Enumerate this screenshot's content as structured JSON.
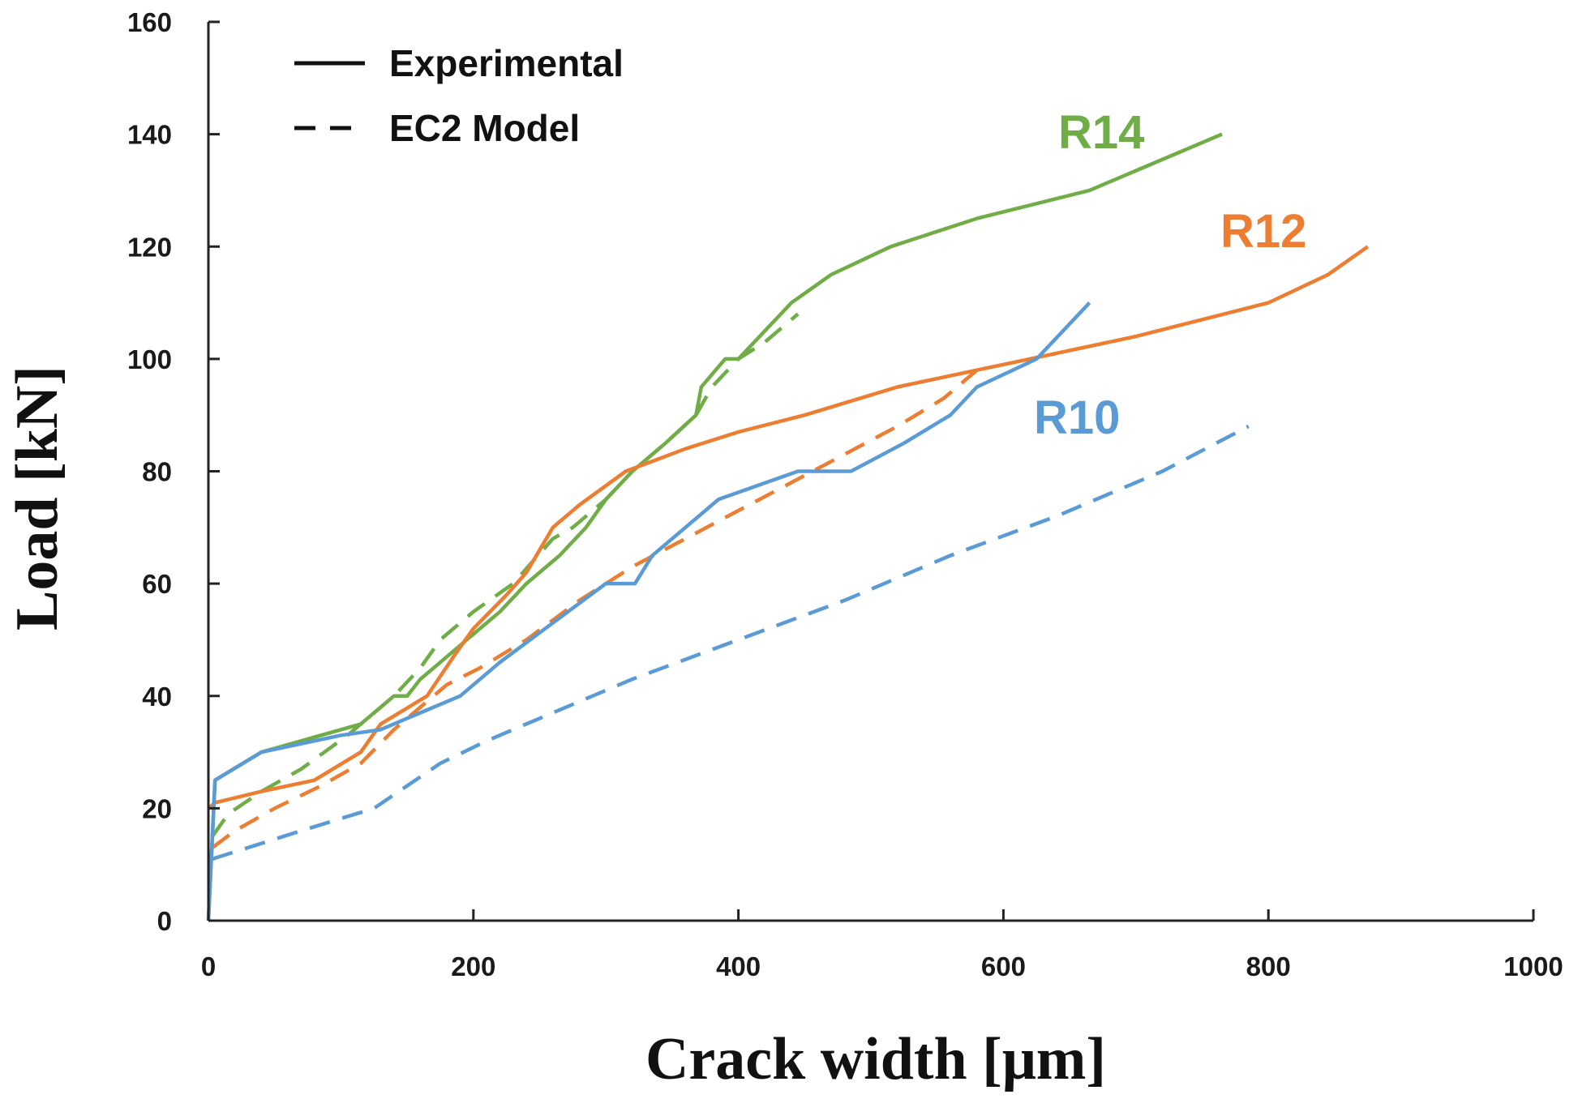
{
  "chart_data": {
    "type": "line",
    "title": "",
    "xlabel": "Crack width [μm]",
    "ylabel": "Load [kN]",
    "xlim": [
      0,
      1000
    ],
    "ylim": [
      0,
      160
    ],
    "xticks": [
      0,
      200,
      400,
      600,
      800,
      1000
    ],
    "yticks": [
      0,
      20,
      40,
      60,
      80,
      100,
      120,
      140,
      160
    ],
    "grid": false,
    "legend": {
      "position": "top-left",
      "entries": [
        {
          "label": "Experimental",
          "style": "solid"
        },
        {
          "label": "EC2 Model",
          "style": "dashed"
        }
      ]
    },
    "series": [
      {
        "name": "R14 Experimental",
        "label": "R14",
        "color": "#70ad47",
        "style": "solid",
        "points": [
          [
            0,
            0
          ],
          [
            3,
            15
          ],
          [
            5,
            25
          ],
          [
            40,
            30
          ],
          [
            115,
            35
          ],
          [
            140,
            40
          ],
          [
            150,
            40
          ],
          [
            160,
            43
          ],
          [
            175,
            46
          ],
          [
            195,
            50
          ],
          [
            220,
            55
          ],
          [
            240,
            60
          ],
          [
            265,
            65
          ],
          [
            285,
            70
          ],
          [
            300,
            75
          ],
          [
            320,
            80
          ],
          [
            345,
            85
          ],
          [
            368,
            90
          ],
          [
            372,
            95
          ],
          [
            390,
            100
          ],
          [
            400,
            100
          ],
          [
            420,
            105
          ],
          [
            440,
            110
          ],
          [
            470,
            115
          ],
          [
            515,
            120
          ],
          [
            580,
            125
          ],
          [
            665,
            130
          ],
          [
            765,
            140
          ]
        ]
      },
      {
        "name": "R14 EC2 Model",
        "label": "",
        "color": "#70ad47",
        "style": "dashed",
        "points": [
          [
            3,
            15
          ],
          [
            15,
            19
          ],
          [
            40,
            23
          ],
          [
            70,
            27
          ],
          [
            105,
            33
          ],
          [
            140,
            40
          ],
          [
            160,
            45
          ],
          [
            175,
            50
          ],
          [
            200,
            55
          ],
          [
            230,
            60
          ],
          [
            260,
            68
          ],
          [
            275,
            70
          ],
          [
            300,
            75
          ],
          [
            320,
            80
          ],
          [
            345,
            85
          ],
          [
            368,
            90
          ],
          [
            380,
            95
          ],
          [
            400,
            100
          ],
          [
            420,
            103
          ],
          [
            445,
            108
          ]
        ]
      },
      {
        "name": "R12 Experimental",
        "label": "R12",
        "color": "#ed7d31",
        "style": "solid",
        "points": [
          [
            0,
            20
          ],
          [
            5,
            21
          ],
          [
            40,
            23
          ],
          [
            80,
            25
          ],
          [
            115,
            30
          ],
          [
            130,
            35
          ],
          [
            165,
            40
          ],
          [
            185,
            47
          ],
          [
            200,
            52
          ],
          [
            225,
            58
          ],
          [
            240,
            62
          ],
          [
            260,
            70
          ],
          [
            280,
            74
          ],
          [
            315,
            80
          ],
          [
            360,
            84
          ],
          [
            400,
            87
          ],
          [
            450,
            90
          ],
          [
            520,
            95
          ],
          [
            580,
            98
          ],
          [
            620,
            100
          ],
          [
            700,
            104
          ],
          [
            800,
            110
          ],
          [
            845,
            115
          ],
          [
            875,
            120
          ]
        ]
      },
      {
        "name": "R12 EC2 Model",
        "label": "",
        "color": "#ed7d31",
        "style": "dashed",
        "points": [
          [
            3,
            13
          ],
          [
            20,
            16
          ],
          [
            50,
            20
          ],
          [
            85,
            24
          ],
          [
            115,
            28
          ],
          [
            140,
            34
          ],
          [
            160,
            38
          ],
          [
            180,
            42
          ],
          [
            205,
            45
          ],
          [
            240,
            50
          ],
          [
            280,
            57
          ],
          [
            320,
            63
          ],
          [
            360,
            68
          ],
          [
            400,
            73
          ],
          [
            440,
            78
          ],
          [
            480,
            83
          ],
          [
            520,
            88
          ],
          [
            555,
            93
          ],
          [
            585,
            99
          ]
        ]
      },
      {
        "name": "R10 Experimental",
        "label": "R10",
        "color": "#5b9bd5",
        "style": "solid",
        "points": [
          [
            0,
            0
          ],
          [
            3,
            15
          ],
          [
            5,
            25
          ],
          [
            40,
            30
          ],
          [
            100,
            33
          ],
          [
            130,
            34
          ],
          [
            160,
            37
          ],
          [
            190,
            40
          ],
          [
            220,
            46
          ],
          [
            260,
            53
          ],
          [
            300,
            60
          ],
          [
            322,
            60
          ],
          [
            335,
            65
          ],
          [
            350,
            68
          ],
          [
            385,
            75
          ],
          [
            445,
            80
          ],
          [
            485,
            80
          ],
          [
            525,
            85
          ],
          [
            560,
            90
          ],
          [
            580,
            95
          ],
          [
            625,
            100
          ],
          [
            665,
            110
          ]
        ]
      },
      {
        "name": "R10 EC2 Model",
        "label": "",
        "color": "#5b9bd5",
        "style": "dashed",
        "points": [
          [
            3,
            11
          ],
          [
            30,
            13
          ],
          [
            70,
            16
          ],
          [
            125,
            20
          ],
          [
            150,
            24
          ],
          [
            175,
            28
          ],
          [
            210,
            32
          ],
          [
            260,
            37
          ],
          [
            320,
            43
          ],
          [
            400,
            50
          ],
          [
            480,
            57
          ],
          [
            560,
            65
          ],
          [
            640,
            72
          ],
          [
            720,
            80
          ],
          [
            785,
            88
          ]
        ]
      }
    ]
  }
}
